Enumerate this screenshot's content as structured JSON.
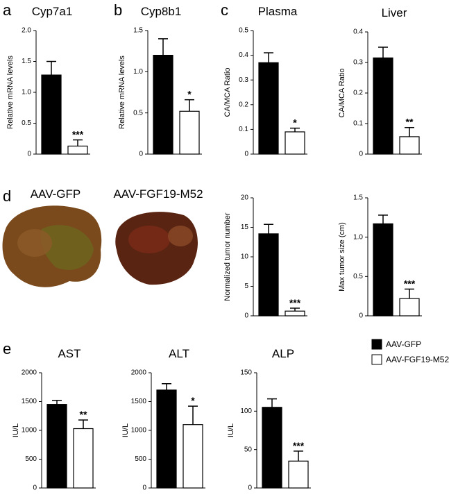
{
  "panel_labels": [
    "a",
    "b",
    "c",
    "d",
    "e"
  ],
  "image_labels": [
    "AAV-GFP",
    "AAV-FGF19-M52"
  ],
  "legend": [
    {
      "name": "AAV-GFP",
      "color": "#000000"
    },
    {
      "name": "AAV-FGF19-M52",
      "color": "#ffffff"
    }
  ],
  "chart_data": [
    {
      "type": "bar",
      "title": "Cyp7a1",
      "ylabel": "Relative mRNA levels",
      "ylim": [
        0,
        2.0
      ],
      "yticks": [
        0,
        0.5,
        {
          "value": 1.0,
          "label": "1.0"
        },
        1.5,
        {
          "value": 2.0,
          "label": "2.0"
        }
      ],
      "values": [
        1.28,
        0.13
      ],
      "errors": [
        0.22,
        0.1
      ],
      "significance": "***"
    },
    {
      "type": "bar",
      "title": "Cyp8b1",
      "ylabel": "Relative mRNA levels",
      "ylim": [
        0,
        1.5
      ],
      "yticks": [
        0,
        0.5,
        {
          "value": 1.0,
          "label": "1.0"
        },
        1.5
      ],
      "values": [
        1.2,
        0.52
      ],
      "errors": [
        0.2,
        0.14
      ],
      "significance": "*"
    },
    {
      "type": "bar",
      "title": "Plasma",
      "ylabel": "CA/MCA Ratio",
      "ylim": [
        0,
        0.5
      ],
      "yticks": [
        0,
        0.1,
        0.2,
        0.3,
        0.4,
        0.5
      ],
      "values": [
        0.37,
        0.09
      ],
      "errors": [
        0.04,
        0.015
      ],
      "significance": "*"
    },
    {
      "type": "bar",
      "title": "Liver",
      "ylabel": "CA/MCA Ratio",
      "ylim": [
        0,
        0.4
      ],
      "yticks": [
        0,
        0.1,
        0.2,
        0.3,
        0.4
      ],
      "values": [
        0.315,
        0.057
      ],
      "errors": [
        0.035,
        0.03
      ],
      "significance": "**"
    },
    {
      "type": "bar",
      "ylabel": "Normalized tumor number",
      "ylim": [
        0,
        20
      ],
      "yticks": [
        0,
        5,
        10,
        15,
        20
      ],
      "values": [
        13.9,
        0.8
      ],
      "errors": [
        1.6,
        0.5
      ],
      "significance": "***"
    },
    {
      "type": "bar",
      "ylabel": "Max tumor size (cm)",
      "ylim": [
        0,
        1.5
      ],
      "yticks": [
        0,
        0.5,
        {
          "value": 1.0,
          "label": "1.0"
        },
        1.5
      ],
      "values": [
        1.17,
        0.22
      ],
      "errors": [
        0.11,
        0.12
      ],
      "significance": "***"
    },
    {
      "type": "bar",
      "title": "AST",
      "ylabel": "IU/L",
      "ylim": [
        0,
        2000
      ],
      "yticks": [
        0,
        500,
        1000,
        1500,
        2000
      ],
      "values": [
        1450,
        1030
      ],
      "errors": [
        70,
        150
      ],
      "significance": "**"
    },
    {
      "type": "bar",
      "title": "ALT",
      "ylabel": "IU/L",
      "ylim": [
        0,
        2000
      ],
      "yticks": [
        0,
        500,
        1000,
        1500,
        2000
      ],
      "values": [
        1700,
        1100
      ],
      "errors": [
        110,
        320
      ],
      "significance": "*"
    },
    {
      "type": "bar",
      "title": "ALP",
      "ylabel": "IU/L",
      "ylim": [
        0,
        150
      ],
      "yticks": [
        0,
        50,
        100,
        150
      ],
      "values": [
        105,
        35
      ],
      "errors": [
        11,
        13
      ],
      "significance": "***"
    }
  ]
}
